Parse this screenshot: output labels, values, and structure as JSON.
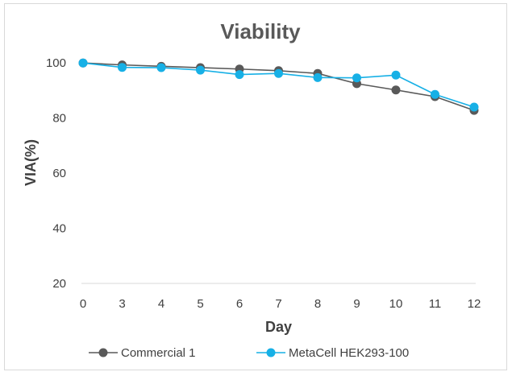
{
  "chart_data": {
    "type": "line",
    "title": "Viability",
    "xlabel": "Day",
    "ylabel": "VIA(%)",
    "categories": [
      "0",
      "3",
      "4",
      "5",
      "6",
      "7",
      "8",
      "9",
      "10",
      "11",
      "12"
    ],
    "ylim": [
      20,
      110
    ],
    "yticks": [
      "20",
      "40",
      "60",
      "80",
      "100"
    ],
    "grid": false,
    "legend_position": "bottom",
    "series": [
      {
        "name": "Commercial 1",
        "color": "#595959",
        "values": [
          100,
          99.3,
          98.8,
          98.3,
          97.8,
          97.2,
          96.2,
          92.5,
          90.2,
          87.8,
          82.8
        ]
      },
      {
        "name": "MetaCell HEK293-100",
        "color": "#17b0e6",
        "values": [
          100,
          98.4,
          98.3,
          97.4,
          95.8,
          96.2,
          94.7,
          94.6,
          95.6,
          88.6,
          84
        ]
      }
    ]
  }
}
